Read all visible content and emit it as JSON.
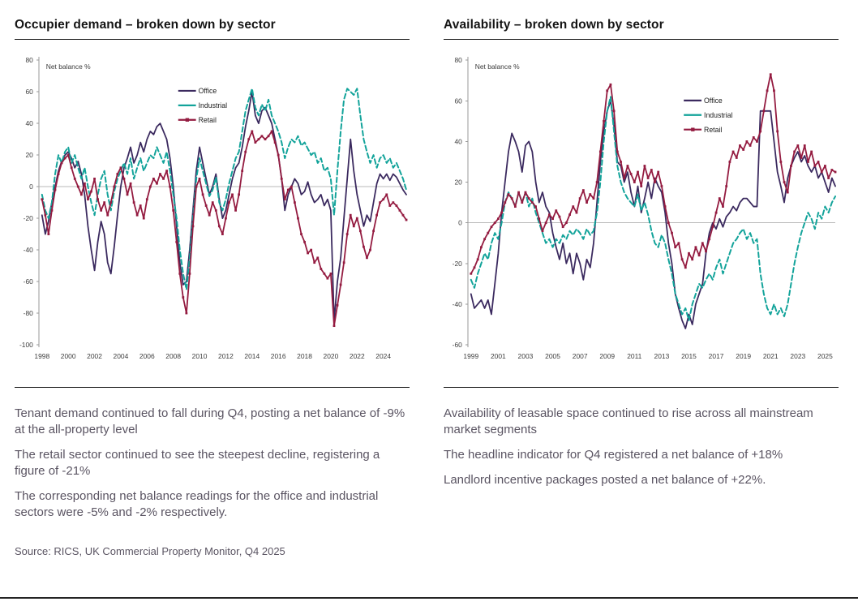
{
  "left_panel": {
    "title": "Occupier demand – broken down by sector",
    "notes": [
      "Tenant demand continued to fall during Q4, posting a net balance of -9% at the all-property level",
      "The retail sector continued to see the steepest decline, registering a figure of -21%",
      "The corresponding net balance readings for the office and industrial sectors were -5% and -2% respectively."
    ],
    "source": "Source: RICS, UK Commercial Property Monitor, Q4 2025"
  },
  "right_panel": {
    "title": "Availability – broken down by sector",
    "notes": [
      "Availability of leasable space continued to rise across all mainstream market segments",
      "The headline indicator for Q4 registered a net balance of +18%",
      "Landlord incentive packages posted a net balance of +22%."
    ]
  },
  "colors": {
    "office": "#3b2a5f",
    "industrial": "#12a39a",
    "retail": "#941b40",
    "axis": "#9a9a9a",
    "zero_line": "#b8b8b8",
    "tick_text": "#3d3d3d",
    "legend_text": "#1c1c1c"
  },
  "chart_data": [
    {
      "type": "line",
      "title": "Occupier demand – broken down by sector",
      "inner_label": "Net balance %",
      "frequency": "quarterly",
      "x_start_year": 1998,
      "xticks": [
        1998,
        2000,
        2002,
        2004,
        2006,
        2008,
        2010,
        2012,
        2014,
        2016,
        2018,
        2020,
        2022,
        2024
      ],
      "ylim": [
        -100,
        80
      ],
      "yticks": [
        80,
        60,
        40,
        20,
        0,
        -20,
        -40,
        -60,
        -80,
        -100
      ],
      "grid": "zero-line-only",
      "legend_position": "inside-top-center",
      "series": [
        {
          "name": "Office",
          "color": "#3b2a5f",
          "style": "solid",
          "values": [
            -18,
            -30,
            -22,
            -10,
            0,
            10,
            16,
            20,
            22,
            18,
            12,
            16,
            8,
            -5,
            -25,
            -40,
            -53,
            -35,
            -22,
            -30,
            -48,
            -55,
            -38,
            -18,
            0,
            12,
            18,
            25,
            15,
            20,
            28,
            22,
            30,
            35,
            33,
            38,
            40,
            35,
            30,
            18,
            0,
            -25,
            -48,
            -62,
            -60,
            -40,
            -15,
            10,
            25,
            15,
            5,
            -5,
            0,
            8,
            -8,
            -20,
            -15,
            -5,
            5,
            12,
            15,
            25,
            38,
            48,
            60,
            45,
            40,
            48,
            50,
            45,
            40,
            30,
            20,
            5,
            -15,
            -5,
            0,
            5,
            2,
            -5,
            -3,
            3,
            -5,
            -10,
            -8,
            -5,
            -12,
            -8,
            -15,
            -85,
            -60,
            -45,
            -20,
            5,
            30,
            10,
            -5,
            -15,
            -25,
            -18,
            -22,
            -10,
            2,
            8,
            5,
            8,
            4,
            8,
            6,
            2,
            -2,
            -5
          ]
        },
        {
          "name": "Industrial",
          "color": "#12a39a",
          "style": "dashed",
          "values": [
            -5,
            -15,
            -20,
            -10,
            8,
            20,
            15,
            22,
            25,
            15,
            20,
            12,
            5,
            12,
            0,
            -10,
            -18,
            -5,
            5,
            10,
            -5,
            -15,
            -3,
            5,
            10,
            15,
            8,
            18,
            5,
            12,
            18,
            10,
            15,
            20,
            18,
            25,
            20,
            15,
            22,
            10,
            -5,
            -20,
            -40,
            -55,
            -65,
            -45,
            -20,
            5,
            18,
            10,
            2,
            -6,
            -2,
            6,
            -10,
            -15,
            -8,
            2,
            10,
            18,
            22,
            35,
            48,
            55,
            62,
            50,
            45,
            52,
            48,
            55,
            45,
            40,
            35,
            28,
            18,
            25,
            30,
            28,
            32,
            26,
            28,
            24,
            20,
            22,
            15,
            18,
            10,
            12,
            5,
            -18,
            10,
            35,
            55,
            62,
            60,
            58,
            62,
            45,
            30,
            22,
            15,
            20,
            12,
            18,
            20,
            15,
            18,
            12,
            15,
            10,
            5,
            -2
          ]
        },
        {
          "name": "Retail",
          "color": "#941b40",
          "style": "solid-marker",
          "values": [
            -8,
            -18,
            -30,
            -15,
            -2,
            8,
            15,
            18,
            20,
            12,
            5,
            0,
            -5,
            2,
            -8,
            -3,
            5,
            -8,
            -15,
            -10,
            -18,
            -10,
            0,
            8,
            12,
            5,
            -5,
            2,
            -10,
            -18,
            -12,
            -20,
            -8,
            0,
            5,
            2,
            8,
            5,
            10,
            0,
            -15,
            -35,
            -55,
            -70,
            -80,
            -55,
            -25,
            0,
            5,
            -5,
            -12,
            -18,
            -10,
            -15,
            -25,
            -30,
            -20,
            -10,
            -5,
            -15,
            -5,
            10,
            22,
            30,
            35,
            28,
            30,
            32,
            30,
            32,
            35,
            28,
            20,
            5,
            -8,
            -2,
            0,
            -10,
            -20,
            -30,
            -35,
            -42,
            -40,
            -48,
            -45,
            -52,
            -55,
            -58,
            -55,
            -88,
            -75,
            -62,
            -48,
            -30,
            -18,
            -25,
            -20,
            -28,
            -38,
            -45,
            -40,
            -28,
            -18,
            -10,
            -8,
            -5,
            -12,
            -10,
            -12,
            -15,
            -18,
            -21
          ]
        }
      ]
    },
    {
      "type": "line",
      "title": "Availability – broken down by sector",
      "inner_label": "Net balance %",
      "frequency": "quarterly",
      "x_start_year": 1999,
      "xticks": [
        1999,
        2001,
        2003,
        2005,
        2007,
        2009,
        2011,
        2013,
        2015,
        2017,
        2019,
        2021,
        2023,
        2025
      ],
      "ylim": [
        -60,
        80
      ],
      "yticks": [
        80,
        60,
        40,
        20,
        0,
        -20,
        -40,
        -60
      ],
      "grid": "zero-line-only",
      "legend_position": "inside-top-right",
      "series": [
        {
          "name": "Office",
          "color": "#3b2a5f",
          "style": "solid",
          "values": [
            -35,
            -42,
            -40,
            -38,
            -42,
            -38,
            -45,
            -30,
            -15,
            5,
            20,
            35,
            44,
            40,
            35,
            25,
            38,
            40,
            35,
            20,
            10,
            15,
            8,
            5,
            -5,
            -12,
            -18,
            -10,
            -20,
            -15,
            -25,
            -15,
            -20,
            -28,
            -18,
            -22,
            -10,
            10,
            30,
            45,
            55,
            60,
            48,
            30,
            28,
            20,
            25,
            15,
            8,
            18,
            5,
            12,
            20,
            12,
            22,
            18,
            15,
            5,
            -10,
            -20,
            -35,
            -42,
            -48,
            -52,
            -45,
            -50,
            -40,
            -35,
            -30,
            -15,
            -5,
            0,
            -3,
            2,
            -2,
            3,
            5,
            8,
            6,
            10,
            12,
            12,
            10,
            8,
            8,
            55,
            55,
            55,
            55,
            40,
            25,
            18,
            10,
            22,
            28,
            32,
            35,
            30,
            33,
            28,
            25,
            28,
            22,
            25,
            20,
            15,
            22,
            18
          ]
        },
        {
          "name": "Industrial",
          "color": "#12a39a",
          "style": "dashed",
          "values": [
            -28,
            -32,
            -25,
            -20,
            -15,
            -18,
            -10,
            -5,
            -8,
            0,
            10,
            15,
            12,
            8,
            15,
            10,
            15,
            8,
            12,
            5,
            0,
            -5,
            -10,
            -8,
            -12,
            -8,
            -10,
            -6,
            -8,
            -4,
            -6,
            -3,
            -5,
            -8,
            -3,
            -6,
            -4,
            5,
            20,
            40,
            55,
            62,
            45,
            28,
            20,
            15,
            12,
            10,
            8,
            14,
            6,
            10,
            4,
            -4,
            -10,
            -12,
            -6,
            -10,
            -18,
            -25,
            -35,
            -40,
            -45,
            -42,
            -48,
            -40,
            -35,
            -30,
            -32,
            -28,
            -25,
            -28,
            -22,
            -18,
            -25,
            -20,
            -15,
            -10,
            -8,
            -5,
            -3,
            -8,
            -5,
            -10,
            -8,
            -25,
            -35,
            -42,
            -45,
            -40,
            -45,
            -42,
            -46,
            -40,
            -30,
            -20,
            -12,
            -5,
            0,
            5,
            2,
            -3,
            5,
            2,
            8,
            5,
            10,
            13
          ]
        },
        {
          "name": "Retail",
          "color": "#941b40",
          "style": "solid-marker",
          "values": [
            -25,
            -22,
            -18,
            -12,
            -8,
            -5,
            -2,
            0,
            2,
            5,
            10,
            14,
            12,
            8,
            15,
            10,
            15,
            12,
            10,
            8,
            2,
            -4,
            0,
            4,
            2,
            6,
            3,
            -2,
            0,
            4,
            8,
            5,
            12,
            16,
            10,
            14,
            12,
            20,
            35,
            50,
            65,
            68,
            55,
            35,
            30,
            22,
            28,
            24,
            20,
            25,
            18,
            28,
            22,
            26,
            20,
            25,
            18,
            8,
            0,
            -5,
            -12,
            -10,
            -18,
            -22,
            -15,
            -18,
            -12,
            -16,
            -10,
            -14,
            -8,
            -2,
            5,
            12,
            8,
            18,
            30,
            35,
            32,
            38,
            36,
            40,
            38,
            42,
            40,
            45,
            55,
            65,
            73,
            65,
            45,
            30,
            20,
            15,
            28,
            35,
            38,
            32,
            38,
            30,
            35,
            28,
            30,
            25,
            28,
            22,
            26,
            25
          ]
        }
      ]
    }
  ]
}
